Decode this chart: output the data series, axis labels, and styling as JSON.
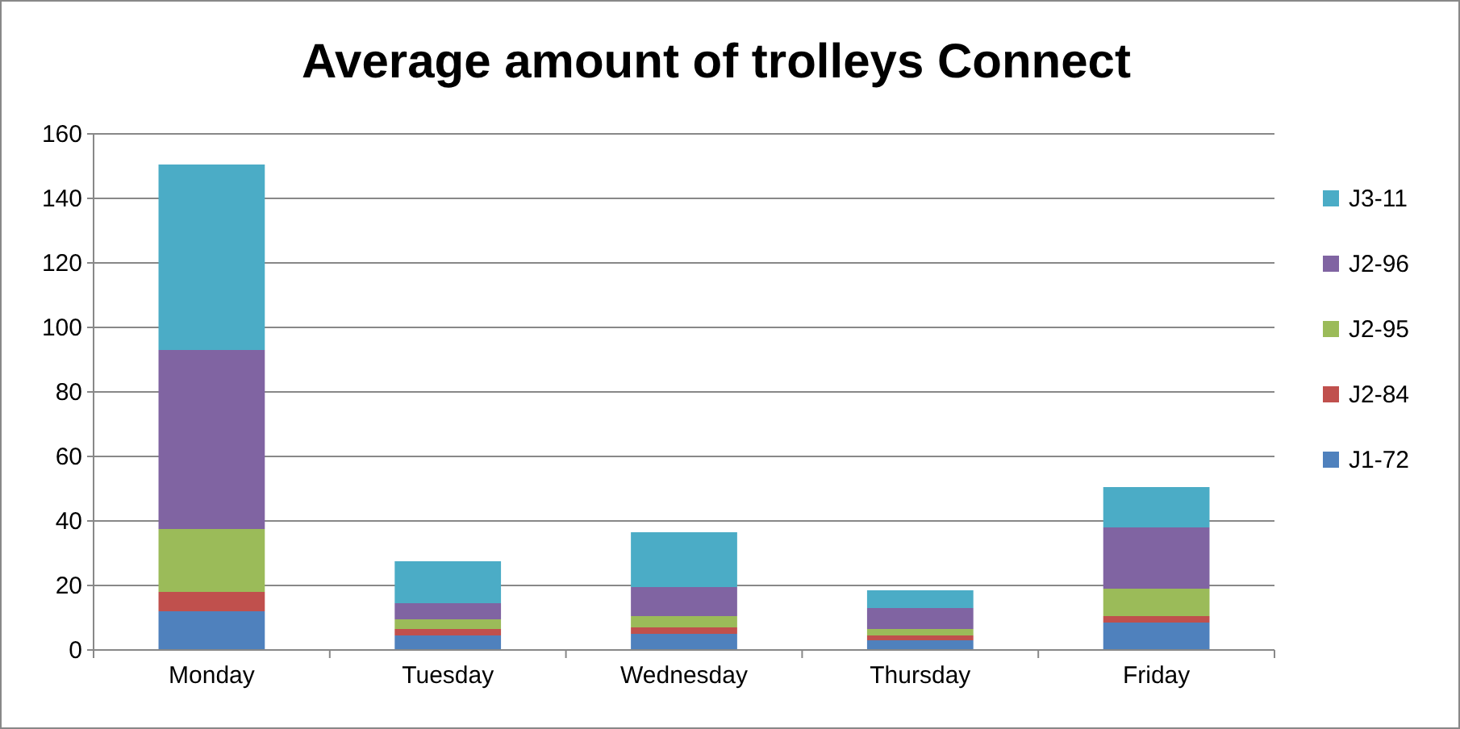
{
  "chart_data": {
    "type": "bar",
    "title": "Average amount of trolleys Connect",
    "categories": [
      "Monday",
      "Tuesday",
      "Wednesday",
      "Thursday",
      "Friday"
    ],
    "stacked": true,
    "series": [
      {
        "name": "J1-72",
        "color": "#4f81bd",
        "values": [
          12,
          4.5,
          5,
          3,
          8.5
        ]
      },
      {
        "name": "J2-84",
        "color": "#c0504d",
        "values": [
          6,
          2,
          2,
          1.5,
          2
        ]
      },
      {
        "name": "J2-95",
        "color": "#9bbb59",
        "values": [
          19.5,
          3,
          3.5,
          2,
          8.5
        ]
      },
      {
        "name": "J2-96",
        "color": "#8064a2",
        "values": [
          55.5,
          5,
          9,
          6.5,
          19
        ]
      },
      {
        "name": "J3-11",
        "color": "#4bacc6",
        "values": [
          57.5,
          13,
          17,
          5.5,
          12.5
        ]
      }
    ],
    "ylim": [
      0,
      160
    ],
    "yticks": [
      0,
      20,
      40,
      60,
      80,
      100,
      120,
      140,
      160
    ],
    "grid": "y",
    "legend": "right"
  }
}
